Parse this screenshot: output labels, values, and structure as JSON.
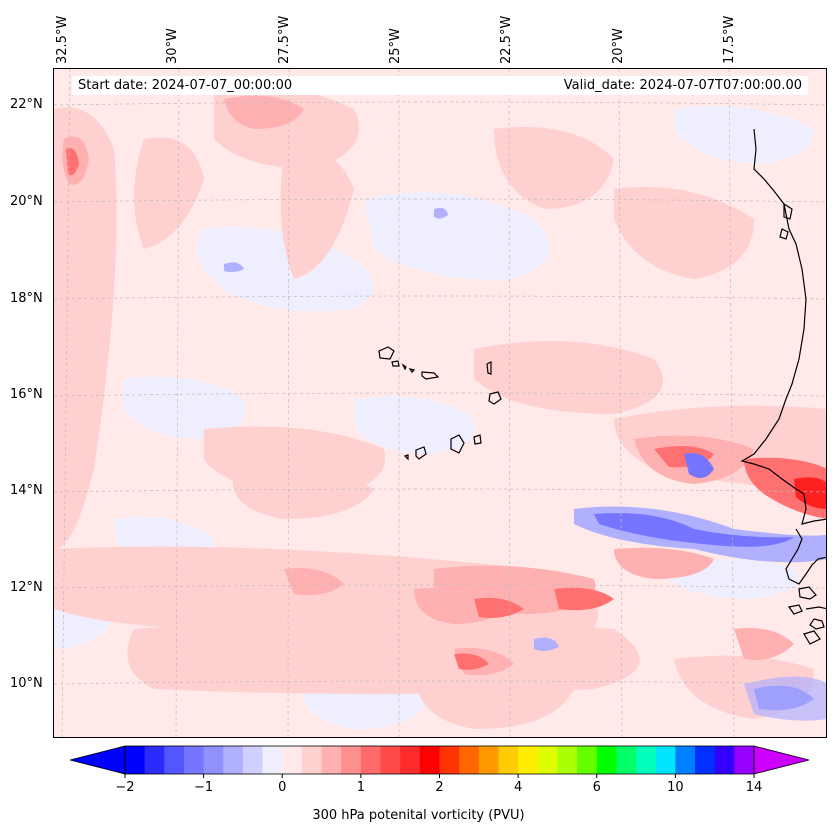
{
  "map": {
    "start_date": "Start date: 2024-07-07_00:00:00",
    "valid_date": "Valid_date: 2024-07-07T07:00:00.00",
    "lon_labels": [
      "32.5°W",
      "30°W",
      "27.5°W",
      "25°W",
      "22.5°W",
      "20°W",
      "17.5°W"
    ],
    "lat_labels": [
      "22°N",
      "20°N",
      "18°N",
      "16°N",
      "14°N",
      "12°N",
      "10°N"
    ]
  },
  "colorbar": {
    "label": "300 hPa potenital vorticity (PVU)",
    "tick_labels": [
      "−2",
      "−1",
      "0",
      "1",
      "2",
      "4",
      "6",
      "10",
      "14"
    ],
    "colors": [
      "#0000ff",
      "#2b2bff",
      "#5555ff",
      "#7575ff",
      "#9090ff",
      "#b0b0ff",
      "#d0d0ff",
      "#efefff",
      "#ffe9e9",
      "#ffd0d0",
      "#ffb0b0",
      "#ff9090",
      "#ff6a6a",
      "#ff4a4a",
      "#ff2a2a",
      "#ff0000",
      "#ff3300",
      "#ff6600",
      "#ff9900",
      "#ffcc00",
      "#ffee00",
      "#ddff00",
      "#aaff00",
      "#66ff00",
      "#00ff00",
      "#00ff66",
      "#00ffbb",
      "#00e5ff",
      "#0080ff",
      "#0030ff",
      "#3300ff",
      "#9900ff"
    ],
    "under_color": "#0000ff",
    "over_color": "#cc00ff"
  }
}
